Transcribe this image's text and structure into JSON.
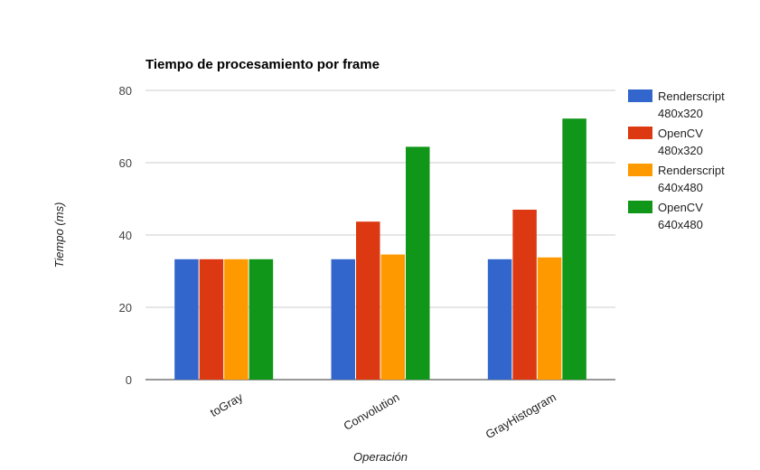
{
  "chart_data": {
    "type": "bar",
    "title": "Tiempo de procesamiento por frame",
    "xlabel": "Operación",
    "ylabel": "Tiempo (ms)",
    "categories": [
      "toGray",
      "Convolution",
      "GrayHistogram"
    ],
    "ylim": [
      0,
      80
    ],
    "yticks": [
      0,
      20,
      40,
      60,
      80
    ],
    "grid": true,
    "legend_position": "right",
    "series": [
      {
        "name": [
          "Renderscript",
          "480x320"
        ],
        "color": "#3366cc",
        "values": [
          33.3,
          33.3,
          33.3
        ]
      },
      {
        "name": [
          "OpenCV",
          "480x320"
        ],
        "color": "#dc3912",
        "values": [
          33.3,
          43.7,
          47.0
        ]
      },
      {
        "name": [
          "Renderscript",
          "640x480"
        ],
        "color": "#ff9900",
        "values": [
          33.3,
          34.6,
          33.8
        ]
      },
      {
        "name": [
          "OpenCV",
          "640x480"
        ],
        "color": "#109618",
        "values": [
          33.3,
          64.4,
          72.2
        ]
      }
    ]
  }
}
